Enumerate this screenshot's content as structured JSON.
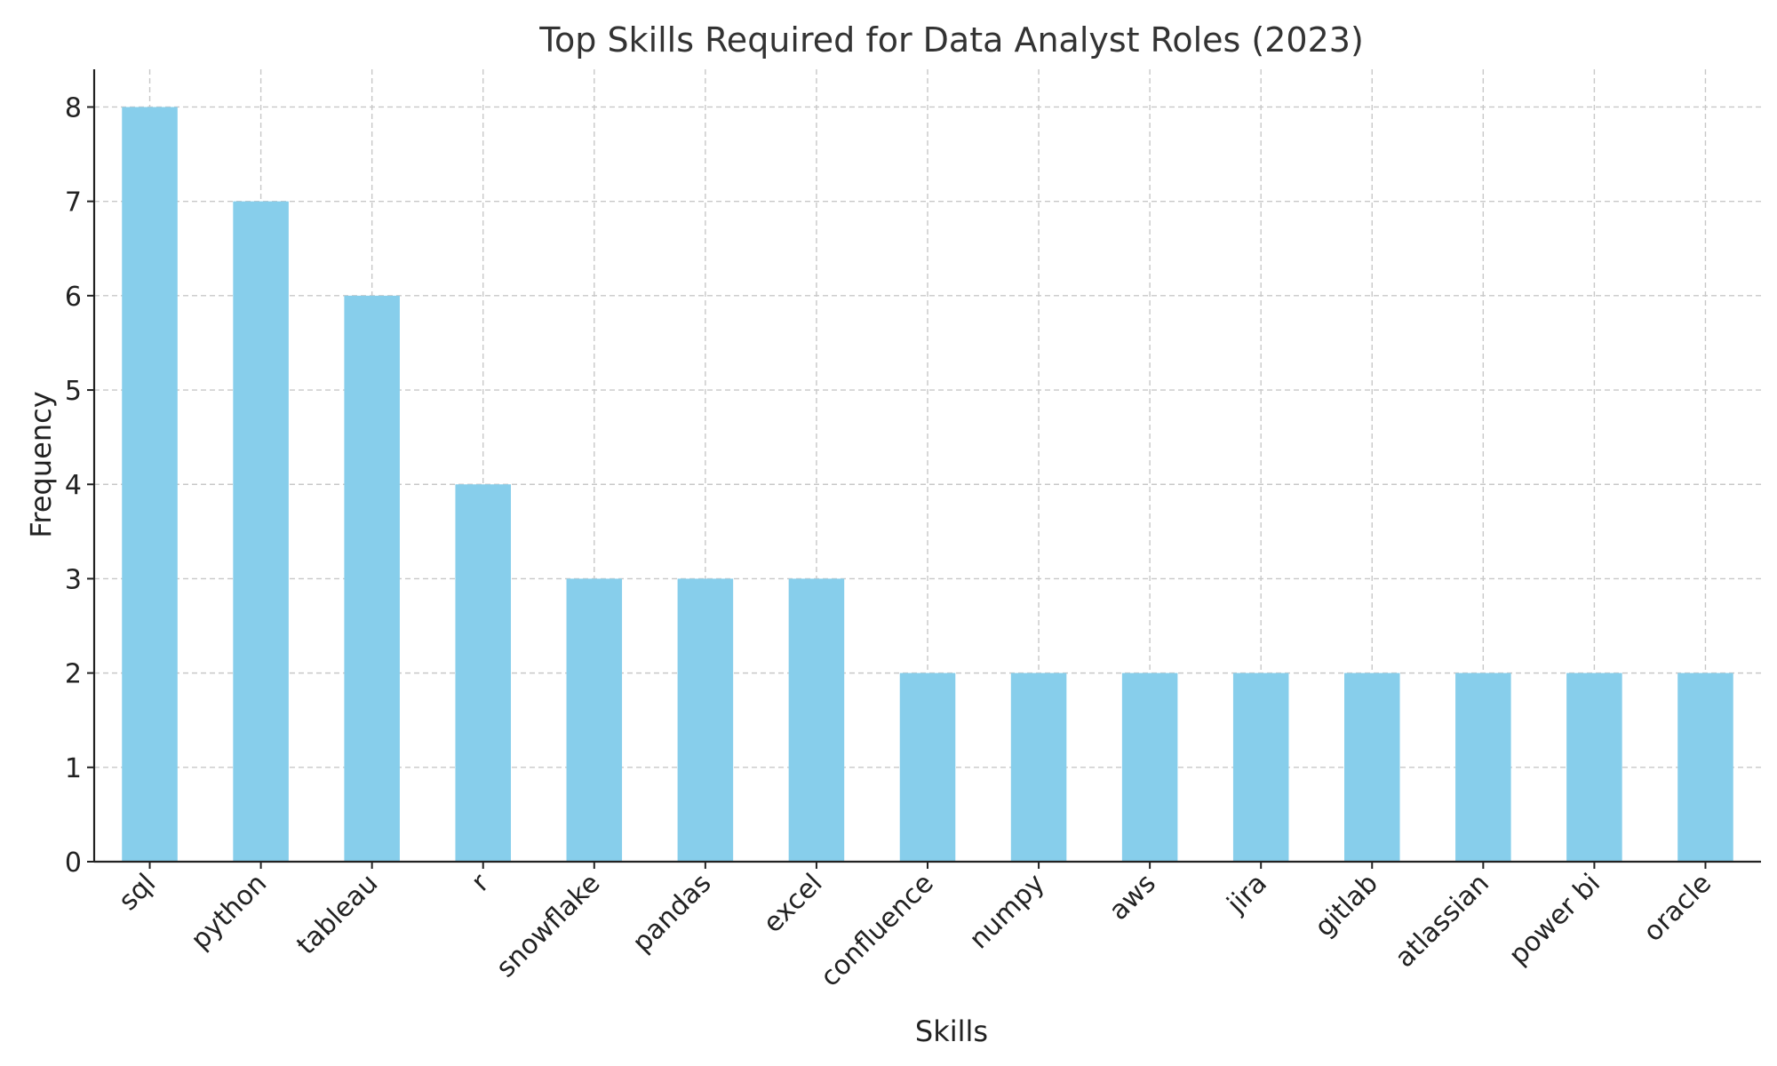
{
  "chart_data": {
    "type": "bar",
    "title": "Top Skills Required for Data Analyst Roles (2023)",
    "xlabel": "Skills",
    "ylabel": "Frequency",
    "categories": [
      "sql",
      "python",
      "tableau",
      "r",
      "snowflake",
      "pandas",
      "excel",
      "confluence",
      "numpy",
      "aws",
      "jira",
      "gitlab",
      "atlassian",
      "power bi",
      "oracle"
    ],
    "values": [
      8,
      7,
      6,
      4,
      3,
      3,
      3,
      2,
      2,
      2,
      2,
      2,
      2,
      2,
      2
    ],
    "ylim": [
      0,
      8.4
    ],
    "yticks": [
      0,
      1,
      2,
      3,
      4,
      5,
      6,
      7,
      8
    ],
    "grid": true,
    "bar_color": "#87CEEB",
    "xtick_rotation": 45
  }
}
